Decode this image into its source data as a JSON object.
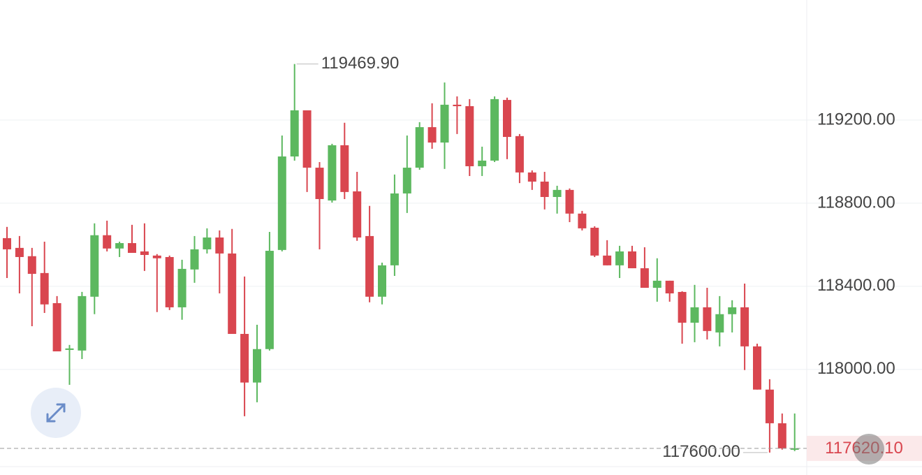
{
  "chart_data": {
    "type": "candlestick",
    "open": [
      118632,
      118585,
      118545,
      118464,
      118319,
      118094,
      118091,
      118350,
      118646,
      118582,
      118608,
      118568,
      118548,
      118541,
      118299,
      118481,
      118578,
      118635,
      118558,
      118171,
      117937,
      118098,
      118575,
      119025,
      119247,
      118971,
      118813,
      119079,
      118857,
      118642,
      118350,
      118501,
      118847,
      118971,
      119166,
      119092,
      119274,
      119267,
      118978,
      119005,
      119297,
      119123,
      118948,
      118904,
      118830,
      118864,
      118750,
      118682,
      118548,
      118501,
      118568,
      118487,
      118393,
      118427,
      118373,
      118225,
      118299,
      118178,
      118266,
      118299,
      118111,
      117903,
      117741,
      117614
    ],
    "high": [
      118686,
      118642,
      118585,
      118615,
      118353,
      118118,
      118373,
      118703,
      118716,
      118615,
      118696,
      118703,
      118555,
      118548,
      118528,
      118642,
      118679,
      118669,
      118676,
      118447,
      118215,
      118662,
      119126,
      119469.9,
      119247,
      118998,
      119086,
      119187,
      118951,
      118787,
      118514,
      118938,
      119126,
      119190,
      119281,
      119381,
      119314,
      119301,
      119072,
      119314,
      119308,
      119133,
      118958,
      118951,
      118884,
      118871,
      118763,
      118689,
      118622,
      118595,
      118595,
      118588,
      118535,
      118427,
      118376,
      118407,
      118393,
      118353,
      118333,
      118413,
      118124,
      117953,
      117788,
      117788
    ],
    "low": [
      118440,
      118366,
      118208,
      118272,
      118087,
      117926,
      118050,
      118266,
      118568,
      118541,
      118561,
      118474,
      118276,
      118286,
      118239,
      118417,
      118558,
      118366,
      118171,
      117775,
      117842,
      118091,
      118568,
      119005,
      118854,
      118578,
      118803,
      118820,
      118619,
      118323,
      118313,
      118450,
      118753,
      118961,
      119062,
      118965,
      119133,
      118931,
      118931,
      118998,
      119012,
      118897,
      118864,
      118770,
      118750,
      118709,
      118669,
      118541,
      118501,
      118440,
      118487,
      118393,
      118326,
      118326,
      118124,
      118131,
      118144,
      118111,
      118178,
      117997,
      117903,
      117600,
      117614,
      117607
    ],
    "close": [
      118578,
      118541,
      118460,
      118313,
      118087,
      118101,
      118353,
      118646,
      118582,
      118608,
      118561,
      118551,
      118535,
      118299,
      118484,
      118578,
      118635,
      118558,
      118171,
      117937,
      118098,
      118571,
      119025,
      119247,
      118971,
      118820,
      119079,
      118854,
      118635,
      118350,
      118501,
      118847,
      118971,
      119166,
      119092,
      119274,
      119267,
      118978,
      119005,
      119301,
      119119,
      118948,
      118904,
      118830,
      118864,
      118750,
      118679,
      118548,
      118501,
      118568,
      118487,
      118393,
      118427,
      118366,
      118225,
      118299,
      118185,
      118266,
      118299,
      118111,
      117903,
      117741,
      117620,
      117620.1
    ],
    "up_color": "#5cb85f",
    "down_color": "#d9464f",
    "ylim": [
      117492,
      119778
    ],
    "yticks": [
      {
        "value": 118000,
        "label": "118000.00"
      },
      {
        "value": 118400,
        "label": "118400.00"
      },
      {
        "value": 118800,
        "label": "118800.00"
      },
      {
        "value": 119200,
        "label": "119200.00"
      }
    ],
    "grid": true,
    "high_annotation": {
      "value": 119469.9,
      "label": "119469.90"
    },
    "low_annotation": {
      "value": 117600,
      "label": "117600.00"
    },
    "last_price": {
      "value": 117620.1,
      "label": "117620.10"
    }
  }
}
